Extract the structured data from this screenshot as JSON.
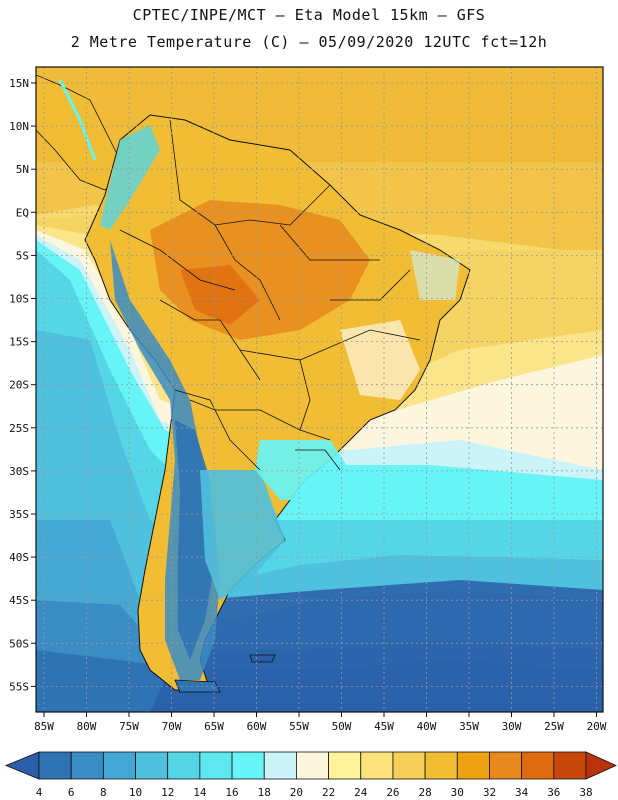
{
  "title_line1": "CPTEC/INPE/MCT –  Eta Model 15km – GFS",
  "title_line2": "2 Metre Temperature (C) – 05/09/2020 12UTC fct=12h",
  "lat_labels": [
    "15N",
    "10N",
    "5N",
    "EQ",
    "5S",
    "10S",
    "15S",
    "20S",
    "25S",
    "30S",
    "35S",
    "40S",
    "45S",
    "50S",
    "55S"
  ],
  "lon_labels": [
    "85W",
    "80W",
    "75W",
    "70W",
    "65W",
    "60W",
    "55W",
    "50W",
    "45W",
    "40W",
    "35W",
    "30W",
    "25W",
    "20W"
  ],
  "colorbar": {
    "levels": [
      "4",
      "6",
      "8",
      "10",
      "12",
      "14",
      "16",
      "18",
      "20",
      "22",
      "24",
      "26",
      "28",
      "30",
      "32",
      "34",
      "36",
      "38"
    ],
    "colors": [
      "#2a5ea8",
      "#2f73b5",
      "#3a8cc4",
      "#45a8d4",
      "#4fc0de",
      "#55d6e6",
      "#5de8ef",
      "#66f4f7",
      "#ccf4f8",
      "#fdf6df",
      "#fef39a",
      "#fbe27a",
      "#f4ce57",
      "#f0bd35",
      "#eea313",
      "#e7891c",
      "#de6b10",
      "#c9460a",
      "#b8330c"
    ]
  }
}
